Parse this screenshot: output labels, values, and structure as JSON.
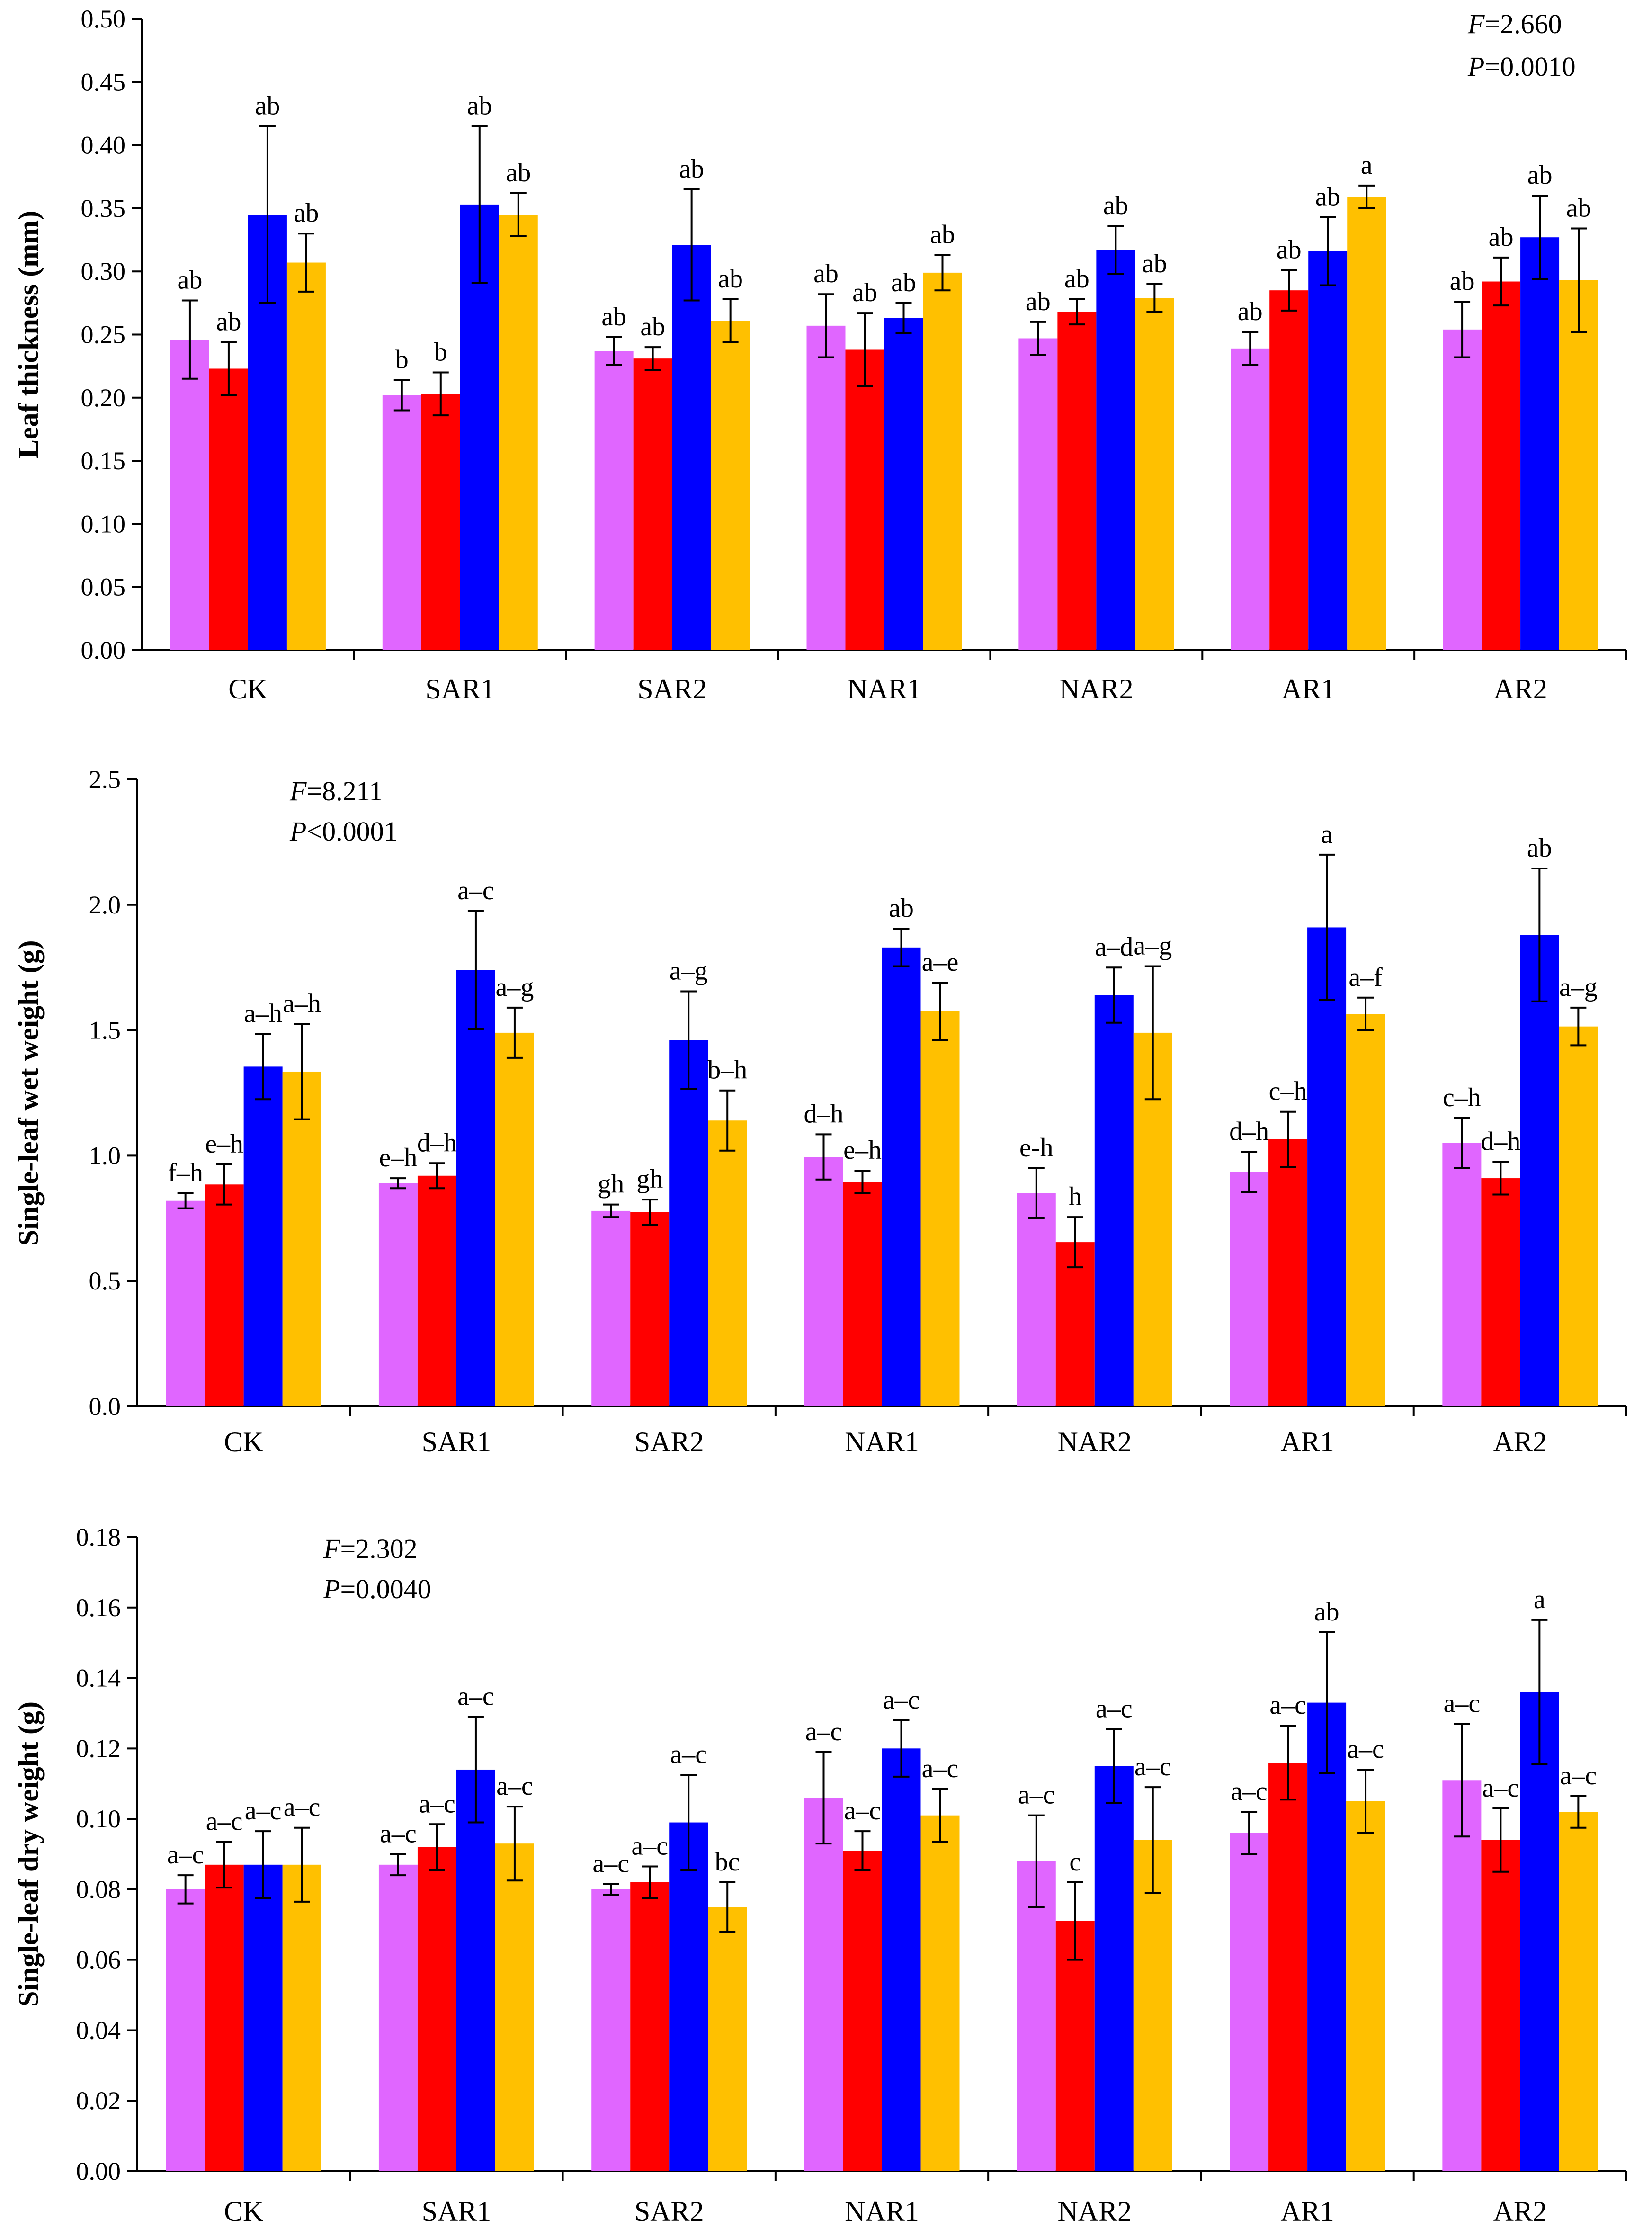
{
  "colors": [
    "#E066FF",
    "#FF0000",
    "#0000FF",
    "#FFC000"
  ],
  "chart_data": [
    {
      "type": "bar",
      "categories": [
        "CK",
        "SAR1",
        "SAR2",
        "NAR1",
        "NAR2",
        "AR1",
        "AR2"
      ],
      "ylabel": "Leaf thickness (mm)",
      "ylim": [
        0,
        0.5
      ],
      "yticks": [
        "0.00",
        "0.05",
        "0.10",
        "0.15",
        "0.20",
        "0.25",
        "0.30",
        "0.35",
        "0.40",
        "0.45",
        "0.50"
      ],
      "stats": {
        "f_letter": "F",
        "f_value": "=2.660",
        "p_letter": "P",
        "p_value": "=0.0010"
      },
      "stats_position": "top-right",
      "series": [
        {
          "values": [
            0.246,
            0.202,
            0.237,
            0.257,
            0.247,
            0.239,
            0.254
          ],
          "errors": [
            0.031,
            0.012,
            0.011,
            0.025,
            0.013,
            0.013,
            0.022
          ],
          "labels": [
            "ab",
            "b",
            "ab",
            "ab",
            "ab",
            "ab",
            "ab"
          ]
        },
        {
          "values": [
            0.223,
            0.203,
            0.231,
            0.238,
            0.268,
            0.285,
            0.292
          ],
          "errors": [
            0.021,
            0.017,
            0.009,
            0.029,
            0.01,
            0.016,
            0.019
          ],
          "labels": [
            "ab",
            "b",
            "ab",
            "ab",
            "ab",
            "ab",
            "ab"
          ]
        },
        {
          "values": [
            0.345,
            0.353,
            0.321,
            0.263,
            0.317,
            0.316,
            0.327
          ],
          "errors": [
            0.07,
            0.062,
            0.044,
            0.012,
            0.019,
            0.027,
            0.033
          ],
          "labels": [
            "ab",
            "ab",
            "ab",
            "ab",
            "ab",
            "ab",
            "ab"
          ]
        },
        {
          "values": [
            0.307,
            0.345,
            0.261,
            0.299,
            0.279,
            0.359,
            0.293
          ],
          "errors": [
            0.023,
            0.017,
            0.017,
            0.014,
            0.011,
            0.009,
            0.041
          ],
          "labels": [
            "ab",
            "ab",
            "ab",
            "ab",
            "ab",
            "a",
            "ab"
          ]
        }
      ]
    },
    {
      "type": "bar",
      "categories": [
        "CK",
        "SAR1",
        "SAR2",
        "NAR1",
        "NAR2",
        "AR1",
        "AR2"
      ],
      "ylabel": "Single-leaf wet weight (g)",
      "ylim": [
        0,
        2.5
      ],
      "yticks": [
        "0.0",
        "0.5",
        "1.0",
        "1.5",
        "2.0",
        "2.5"
      ],
      "stats": {
        "f_letter": "F",
        "f_value": "=8.211",
        "p_letter": "P",
        "p_value": "<0.0001"
      },
      "stats_position": "top-left",
      "series": [
        {
          "values": [
            0.82,
            0.89,
            0.78,
            0.995,
            0.85,
            0.935,
            1.05
          ],
          "errors": [
            0.03,
            0.02,
            0.025,
            0.09,
            0.1,
            0.08,
            0.1
          ],
          "labels": [
            "f–h",
            "e–h",
            "gh",
            "d–h",
            "e-h",
            "d–h",
            "c–h"
          ]
        },
        {
          "values": [
            0.885,
            0.92,
            0.775,
            0.895,
            0.655,
            1.065,
            0.91
          ],
          "errors": [
            0.08,
            0.05,
            0.05,
            0.045,
            0.1,
            0.11,
            0.065
          ],
          "labels": [
            "e–h",
            "d–h",
            "gh",
            "e–h",
            "h",
            "c–h",
            "d–h"
          ]
        },
        {
          "values": [
            1.355,
            1.74,
            1.46,
            1.83,
            1.64,
            1.91,
            1.88
          ],
          "errors": [
            0.13,
            0.235,
            0.195,
            0.075,
            0.11,
            0.29,
            0.265
          ],
          "labels": [
            "a–h",
            "a–c",
            "a–g",
            "ab",
            "a–d",
            "a",
            "ab"
          ]
        },
        {
          "values": [
            1.335,
            1.49,
            1.14,
            1.575,
            1.49,
            1.565,
            1.515
          ],
          "errors": [
            0.19,
            0.1,
            0.12,
            0.115,
            0.265,
            0.065,
            0.075
          ],
          "labels": [
            "a–h",
            "a–g",
            "b–h",
            "a–e",
            "a–g",
            "a–f",
            "a–g"
          ]
        }
      ]
    },
    {
      "type": "bar",
      "categories": [
        "CK",
        "SAR1",
        "SAR2",
        "NAR1",
        "NAR2",
        "AR1",
        "AR2"
      ],
      "ylabel": "Single-leaf dry weight (g)",
      "ylim": [
        0,
        0.18
      ],
      "yticks": [
        "0.00",
        "0.02",
        "0.04",
        "0.06",
        "0.08",
        "0.10",
        "0.12",
        "0.14",
        "0.16",
        "0.18"
      ],
      "stats": {
        "f_letter": "F",
        "f_value": "=2.302",
        "p_letter": "P",
        "p_value": "=0.0040"
      },
      "stats_position": "top-left",
      "series": [
        {
          "values": [
            0.08,
            0.087,
            0.08,
            0.106,
            0.088,
            0.096,
            0.111
          ],
          "errors": [
            0.004,
            0.003,
            0.0015,
            0.013,
            0.013,
            0.006,
            0.016
          ],
          "labels": [
            "a–c",
            "a–c",
            "a–c",
            "a–c",
            "a–c",
            "a–c",
            "a–c"
          ]
        },
        {
          "values": [
            0.087,
            0.092,
            0.082,
            0.091,
            0.071,
            0.116,
            0.094
          ],
          "errors": [
            0.0065,
            0.0065,
            0.0045,
            0.0055,
            0.011,
            0.0105,
            0.009
          ],
          "labels": [
            "a–c",
            "a–c",
            "a–c",
            "a–c",
            "c",
            "a–c",
            "a–c"
          ]
        },
        {
          "values": [
            0.087,
            0.114,
            0.099,
            0.12,
            0.115,
            0.133,
            0.136
          ],
          "errors": [
            0.0095,
            0.015,
            0.0135,
            0.008,
            0.0105,
            0.02,
            0.0205
          ],
          "labels": [
            "a–c",
            "a–c",
            "a–c",
            "a–c",
            "a–c",
            "ab",
            "a"
          ]
        },
        {
          "values": [
            0.087,
            0.093,
            0.075,
            0.101,
            0.094,
            0.105,
            0.102
          ],
          "errors": [
            0.0105,
            0.0105,
            0.007,
            0.0075,
            0.015,
            0.009,
            0.0045
          ],
          "labels": [
            "a–c",
            "a–c",
            "bc",
            "a–c",
            "a–c",
            "a–c",
            "a–c"
          ]
        }
      ]
    }
  ]
}
